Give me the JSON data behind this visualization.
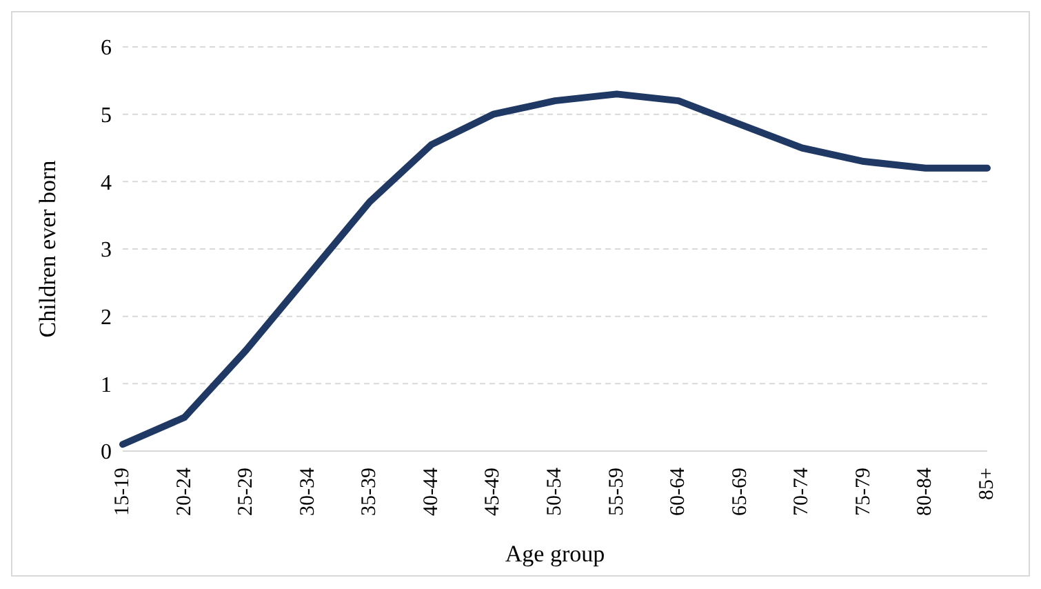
{
  "chart_data": {
    "type": "line",
    "xlabel": "Age group",
    "ylabel": "Children  ever born",
    "categories": [
      "15-19",
      "20-24",
      "25-29",
      "30-34",
      "35-39",
      "40-44",
      "45-49",
      "50-54",
      "55-59",
      "60-64",
      "65-69",
      "70-74",
      "75-79",
      "80-84",
      "85+"
    ],
    "series": [
      {
        "color": "#1f3864",
        "values": [
          0.1,
          0.5,
          1.5,
          2.6,
          3.7,
          4.55,
          5.0,
          5.2,
          5.3,
          5.2,
          4.85,
          4.5,
          4.3,
          4.2,
          4.2
        ]
      }
    ],
    "ylim": [
      0,
      6
    ],
    "yticks": [
      0,
      1,
      2,
      3,
      4,
      5,
      6
    ],
    "grid": "y",
    "legend": false,
    "marker": "none",
    "line_style": "solid"
  }
}
